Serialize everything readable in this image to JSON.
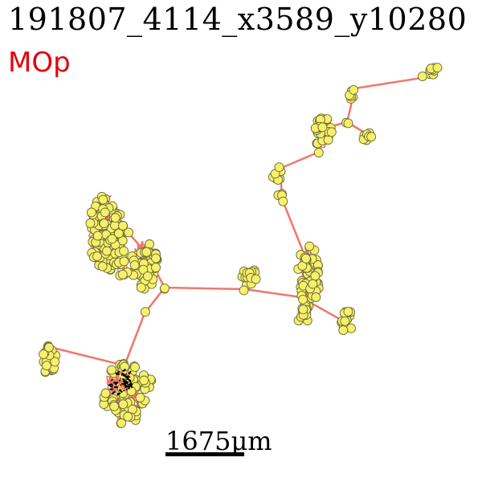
{
  "title": "191807_4114_x3589_y10280",
  "region": "MOp",
  "scale_bar": {
    "value": "1675",
    "unit": "μm"
  },
  "colors": {
    "edge": "#f4766b",
    "node_fill": "#f7f16a",
    "node_stroke": "#6b6a3a",
    "soma": "#000000",
    "region": "#e8000b"
  }
}
